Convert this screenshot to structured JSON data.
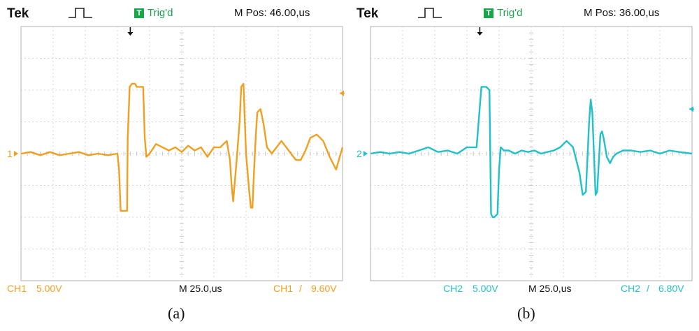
{
  "scopes": [
    {
      "brand": "Tek",
      "trigger_badge": "T",
      "trigger_status": "Trig'd",
      "m_pos": "M Pos: 46.00,us",
      "channel_label": "CH1",
      "channel_volts": "5.00V",
      "timebase": "M 25.0,us",
      "trigger_channel": "CH1",
      "trigger_slope": "/",
      "trigger_level": "9.60V",
      "channel_marker": "1",
      "caption": "(a)",
      "color": "#f0a020"
    },
    {
      "brand": "Tek",
      "trigger_badge": "T",
      "trigger_status": "Trig'd",
      "m_pos": "M Pos: 36.00,us",
      "channel_label": "CH2",
      "channel_volts": "5.00V",
      "timebase": "M 25.0,us",
      "trigger_channel": "CH2",
      "trigger_slope": "/",
      "trigger_level": "6.80V",
      "channel_marker": "2",
      "caption": "(b)",
      "color": "#22c0c8"
    }
  ],
  "chart_data": [
    {
      "type": "line",
      "xlim": [
        0,
        10
      ],
      "ylim": [
        -4,
        4
      ],
      "grid": true,
      "trigger_level_div": 1.9,
      "trigger_time_div": 3.4,
      "series": [
        {
          "x": [
            0,
            0.3,
            0.6,
            0.9,
            1.2,
            1.5,
            1.8,
            2.1,
            2.4,
            2.7,
            3.0,
            3.05,
            3.1,
            3.3,
            3.32,
            3.38,
            3.45,
            3.55,
            3.6,
            3.8,
            3.85,
            3.9,
            4.0,
            4.2,
            4.4,
            4.6,
            4.8,
            5.0,
            5.2,
            5.4,
            5.6,
            5.8,
            6.0,
            6.2,
            6.4,
            6.5,
            6.55,
            6.6,
            6.7,
            6.8,
            6.85,
            6.92,
            7.0,
            7.1,
            7.15,
            7.2,
            7.25,
            7.3,
            7.35,
            7.45,
            7.55,
            7.65,
            7.8,
            7.95,
            8.1,
            8.25,
            8.4,
            8.55,
            8.7,
            8.85,
            9.0,
            9.2,
            9.4,
            9.6,
            9.8,
            10.0
          ],
          "y": [
            0,
            0.05,
            -0.05,
            0.05,
            -0.05,
            0,
            0.05,
            -0.05,
            0,
            -0.05,
            0,
            -0.5,
            -1.8,
            -1.8,
            0.5,
            2.1,
            2.2,
            2.2,
            2.1,
            2.1,
            0.5,
            -0.1,
            0,
            0.3,
            0.2,
            0.1,
            0.2,
            0.05,
            0.25,
            0.1,
            0.2,
            -0.1,
            0.2,
            0.2,
            0.4,
            -0.2,
            -1.0,
            -1.5,
            -0.3,
            1.0,
            2.1,
            2.2,
            0,
            -1.2,
            -1.7,
            -1.7,
            -0.5,
            0.5,
            1.3,
            1.4,
            0.9,
            0.2,
            0,
            0.2,
            0.4,
            0.2,
            0,
            -0.2,
            -0.2,
            0.1,
            0.5,
            0.6,
            0.4,
            -0.1,
            -0.5,
            0.2
          ]
        }
      ]
    },
    {
      "type": "line",
      "xlim": [
        0,
        10
      ],
      "ylim": [
        -4,
        4
      ],
      "grid": true,
      "trigger_level_div": 1.4,
      "trigger_time_div": 3.4,
      "series": [
        {
          "x": [
            0,
            0.3,
            0.6,
            0.9,
            1.2,
            1.5,
            1.8,
            2.1,
            2.4,
            2.7,
            3.0,
            3.3,
            3.45,
            3.5,
            3.6,
            3.7,
            3.75,
            3.8,
            3.85,
            3.95,
            4.0,
            4.05,
            4.15,
            4.3,
            4.5,
            4.7,
            4.9,
            5.1,
            5.3,
            5.5,
            5.7,
            5.9,
            6.1,
            6.3,
            6.5,
            6.6,
            6.7,
            6.8,
            6.85,
            6.9,
            6.95,
            7.0,
            7.05,
            7.15,
            7.2,
            7.25,
            7.35,
            7.45,
            7.55,
            7.65,
            7.85,
            8.1,
            8.4,
            8.7,
            9.0,
            9.3,
            9.6,
            10.0
          ],
          "y": [
            0,
            0.05,
            0,
            0.05,
            0,
            0.1,
            0.2,
            0.05,
            0.1,
            0,
            0.2,
            0.2,
            2.1,
            2.1,
            2.1,
            2.0,
            -1.9,
            -2.0,
            -2.0,
            -1.9,
            -0.5,
            0.2,
            0.1,
            0.1,
            0,
            0.1,
            0.05,
            0.1,
            0,
            0.05,
            0.1,
            0.2,
            0.4,
            0.2,
            -0.6,
            -1.3,
            -1.2,
            1.0,
            1.7,
            1.3,
            0.0,
            -1.3,
            -1.2,
            0.6,
            0.7,
            0.5,
            -0.1,
            -0.3,
            -0.1,
            0,
            0.1,
            0.1,
            0.05,
            0.1,
            0,
            0.1,
            0.05,
            0
          ]
        }
      ]
    }
  ]
}
